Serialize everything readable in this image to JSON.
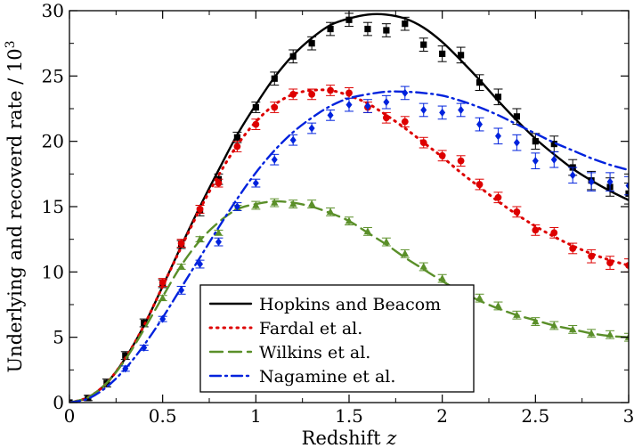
{
  "chart_data": {
    "type": "line",
    "xlabel": "Redshift",
    "xlabel_var": "z",
    "ylabel": "Underlying and recoverd rate / 10",
    "ylabel_exp": "3",
    "xlim": [
      0,
      3
    ],
    "ylim": [
      0,
      30
    ],
    "x_ticks": [
      0,
      0.5,
      1,
      1.5,
      2,
      2.5,
      3
    ],
    "x_tick_labels": [
      "0",
      "0.5",
      "1",
      "1.5",
      "2",
      "2.5",
      "3"
    ],
    "y_ticks": [
      0,
      5,
      10,
      15,
      20,
      25,
      30
    ],
    "y_tick_labels": [
      "0",
      "5",
      "10",
      "15",
      "20",
      "25",
      "30"
    ],
    "grid": false,
    "legend_position": "bottom-center",
    "series": [
      {
        "name": "Hopkins and Beacom",
        "color": "#000000",
        "dash": "solid",
        "marker": "square",
        "curve_x": [
          0,
          0.1,
          0.2,
          0.3,
          0.4,
          0.5,
          0.6,
          0.7,
          0.8,
          0.9,
          1.0,
          1.1,
          1.2,
          1.3,
          1.4,
          1.5,
          1.6,
          1.7,
          1.8,
          1.9,
          2.0,
          2.1,
          2.2,
          2.3,
          2.4,
          2.5,
          2.6,
          2.7,
          2.8,
          2.9,
          3.0
        ],
        "curve_y": [
          0,
          0.4,
          1.5,
          3.4,
          5.9,
          8.9,
          12.0,
          15.0,
          17.8,
          20.5,
          22.8,
          24.9,
          26.6,
          27.9,
          28.9,
          29.4,
          29.7,
          29.7,
          29.4,
          28.7,
          27.6,
          26.2,
          24.7,
          23.1,
          21.6,
          20.2,
          19.0,
          17.9,
          17.0,
          16.2,
          15.5
        ],
        "points_x": [
          0,
          0.1,
          0.2,
          0.3,
          0.4,
          0.5,
          0.6,
          0.7,
          0.8,
          0.9,
          1.0,
          1.1,
          1.2,
          1.3,
          1.4,
          1.5,
          1.6,
          1.7,
          1.8,
          1.9,
          2.0,
          2.1,
          2.2,
          2.3,
          2.4,
          2.5,
          2.6,
          2.7,
          2.8,
          2.9,
          3.0
        ],
        "points_y": [
          0,
          0.35,
          1.5,
          3.6,
          6.1,
          9.1,
          12.1,
          14.7,
          17.1,
          20.3,
          22.6,
          24.8,
          26.5,
          27.5,
          28.6,
          29.3,
          28.6,
          28.5,
          29.0,
          27.4,
          26.7,
          26.6,
          24.5,
          23.4,
          21.9,
          20.0,
          19.8,
          18.0,
          17.0,
          16.5,
          16.0
        ],
        "errors": [
          0.1,
          0.2,
          0.3,
          0.3,
          0.3,
          0.3,
          0.3,
          0.4,
          0.4,
          0.4,
          0.4,
          0.5,
          0.5,
          0.5,
          0.5,
          0.5,
          0.5,
          0.5,
          0.5,
          0.5,
          0.6,
          0.6,
          0.6,
          0.6,
          0.6,
          0.6,
          0.6,
          0.6,
          0.7,
          0.7,
          0.8
        ]
      },
      {
        "name": "Fardal et al.",
        "color": "#dd0000",
        "dash": "dotted",
        "marker": "circle",
        "curve_x": [
          0,
          0.1,
          0.2,
          0.3,
          0.4,
          0.5,
          0.6,
          0.7,
          0.8,
          0.9,
          1.0,
          1.1,
          1.2,
          1.3,
          1.4,
          1.5,
          1.6,
          1.7,
          1.8,
          1.9,
          2.0,
          2.1,
          2.2,
          2.3,
          2.4,
          2.5,
          2.6,
          2.7,
          2.8,
          2.9,
          3.0
        ],
        "curve_y": [
          0,
          0.4,
          1.5,
          3.4,
          5.9,
          8.9,
          11.9,
          14.8,
          17.4,
          19.7,
          21.5,
          22.8,
          23.6,
          23.9,
          23.9,
          23.5,
          22.9,
          22.0,
          21.0,
          19.9,
          18.8,
          17.6,
          16.5,
          15.4,
          14.4,
          13.5,
          12.7,
          12.0,
          11.4,
          10.9,
          10.5
        ],
        "points_x": [
          0.5,
          0.6,
          0.7,
          0.8,
          0.9,
          1.0,
          1.1,
          1.2,
          1.3,
          1.4,
          1.5,
          1.6,
          1.7,
          1.8,
          1.9,
          2.0,
          2.1,
          2.2,
          2.3,
          2.4,
          2.5,
          2.6,
          2.7,
          2.8,
          2.9,
          3.0
        ],
        "points_y": [
          9.2,
          12.2,
          14.8,
          16.8,
          19.6,
          21.3,
          22.6,
          23.6,
          23.6,
          23.9,
          23.7,
          22.6,
          21.8,
          21.5,
          19.9,
          18.9,
          18.5,
          16.7,
          15.7,
          14.6,
          13.2,
          13.0,
          11.8,
          11.2,
          10.7,
          10.5
        ],
        "errors": [
          0.3,
          0.3,
          0.3,
          0.3,
          0.4,
          0.4,
          0.4,
          0.4,
          0.4,
          0.4,
          0.4,
          0.4,
          0.4,
          0.4,
          0.4,
          0.4,
          0.4,
          0.4,
          0.4,
          0.4,
          0.4,
          0.4,
          0.4,
          0.5,
          0.5,
          0.5
        ]
      },
      {
        "name": "Wilkins et al.",
        "color": "#5a8f29",
        "dash": "dashed",
        "marker": "triangle",
        "curve_x": [
          0,
          0.1,
          0.2,
          0.3,
          0.4,
          0.5,
          0.6,
          0.7,
          0.8,
          0.9,
          1.0,
          1.1,
          1.2,
          1.3,
          1.4,
          1.5,
          1.6,
          1.7,
          1.8,
          1.9,
          2.0,
          2.1,
          2.2,
          2.3,
          2.4,
          2.5,
          2.6,
          2.7,
          2.8,
          2.9,
          3.0
        ],
        "curve_y": [
          0,
          0.4,
          1.5,
          3.3,
          5.6,
          8.1,
          10.5,
          12.4,
          13.8,
          14.8,
          15.2,
          15.4,
          15.3,
          15.0,
          14.5,
          13.9,
          13.0,
          12.1,
          11.1,
          10.2,
          9.3,
          8.5,
          7.8,
          7.2,
          6.7,
          6.3,
          5.9,
          5.6,
          5.3,
          5.1,
          5.0
        ],
        "points_x": [
          0.5,
          0.6,
          0.7,
          0.8,
          0.9,
          1.0,
          1.1,
          1.2,
          1.3,
          1.4,
          1.5,
          1.6,
          1.7,
          1.8,
          1.9,
          2.0,
          2.1,
          2.2,
          2.3,
          2.4,
          2.5,
          2.6,
          2.7,
          2.8,
          2.9,
          3.0
        ],
        "points_y": [
          8.0,
          10.4,
          12.5,
          13.0,
          14.9,
          15.1,
          15.3,
          15.2,
          15.2,
          14.6,
          13.9,
          13.1,
          12.3,
          11.4,
          10.4,
          9.5,
          8.6,
          8.0,
          7.4,
          6.7,
          6.2,
          5.9,
          5.6,
          5.3,
          5.2,
          5.0
        ],
        "errors": [
          0.2,
          0.2,
          0.2,
          0.2,
          0.2,
          0.3,
          0.3,
          0.3,
          0.3,
          0.3,
          0.3,
          0.3,
          0.3,
          0.3,
          0.3,
          0.3,
          0.3,
          0.3,
          0.3,
          0.3,
          0.3,
          0.3,
          0.3,
          0.3,
          0.3,
          0.3
        ]
      },
      {
        "name": "Nagamine et al.",
        "color": "#0022dd",
        "dash": "dashdot",
        "marker": "diamond",
        "curve_x": [
          0,
          0.1,
          0.2,
          0.3,
          0.4,
          0.5,
          0.6,
          0.7,
          0.8,
          0.9,
          1.0,
          1.1,
          1.2,
          1.3,
          1.4,
          1.5,
          1.6,
          1.7,
          1.8,
          1.9,
          2.0,
          2.1,
          2.2,
          2.3,
          2.4,
          2.5,
          2.6,
          2.7,
          2.8,
          2.9,
          3.0
        ],
        "curve_y": [
          0,
          0.3,
          1.2,
          2.6,
          4.4,
          6.5,
          8.8,
          11.1,
          13.4,
          15.6,
          17.6,
          19.3,
          20.7,
          21.8,
          22.7,
          23.3,
          23.6,
          23.8,
          23.8,
          23.7,
          23.5,
          23.1,
          22.6,
          22.0,
          21.3,
          20.6,
          19.9,
          19.3,
          18.7,
          18.2,
          17.8
        ],
        "points_x": [
          0.3,
          0.4,
          0.5,
          0.6,
          0.7,
          0.8,
          0.9,
          1.0,
          1.1,
          1.2,
          1.3,
          1.4,
          1.5,
          1.6,
          1.7,
          1.8,
          1.9,
          2.0,
          2.1,
          2.2,
          2.3,
          2.4,
          2.5,
          2.6,
          2.7,
          2.8,
          2.9,
          3.0
        ],
        "points_y": [
          2.6,
          4.2,
          6.4,
          8.6,
          10.6,
          12.3,
          15.0,
          16.8,
          18.6,
          20.1,
          21.0,
          22.0,
          22.8,
          22.7,
          23.0,
          23.7,
          22.4,
          22.2,
          22.4,
          21.3,
          20.4,
          19.9,
          18.5,
          18.6,
          17.4,
          16.9,
          16.9,
          16.6
        ],
        "errors": [
          0.2,
          0.2,
          0.2,
          0.3,
          0.3,
          0.3,
          0.3,
          0.3,
          0.4,
          0.4,
          0.4,
          0.4,
          0.5,
          0.5,
          0.5,
          0.5,
          0.5,
          0.5,
          0.5,
          0.5,
          0.6,
          0.6,
          0.6,
          0.6,
          0.6,
          0.7,
          0.7,
          0.7
        ]
      }
    ]
  }
}
